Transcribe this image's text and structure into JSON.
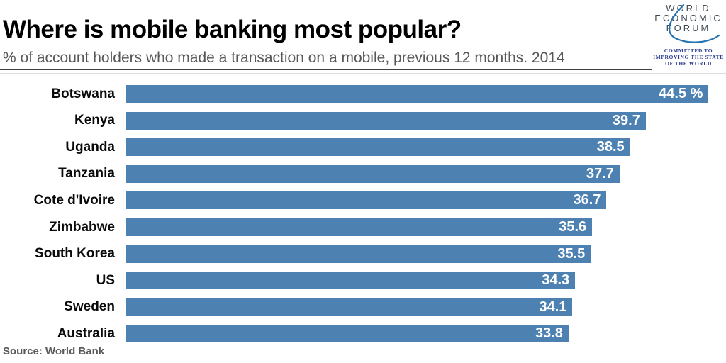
{
  "header": {
    "title": "Where is mobile banking most popular?",
    "subtitle": "% of account holders who made a transaction on a mobile, previous 12 months. 2014"
  },
  "logo": {
    "lines": [
      "WORLD",
      "ECONOMIC",
      "FORUM"
    ],
    "tagline_lines": [
      "COMMITTED TO",
      "IMPROVING THE STATE",
      "OF THE WORLD"
    ],
    "text_color": "#3d4852",
    "swoosh_color": "#2673b4",
    "tagline_color": "#2b3a8f"
  },
  "source": "Source: World Bank",
  "chart_data": {
    "type": "bar",
    "orientation": "horizontal",
    "title": "Where is mobile banking most popular?",
    "subtitle": "% of account holders who made a transaction on a mobile, previous 12 months. 2014",
    "categories": [
      "Botswana",
      "Kenya",
      "Uganda",
      "Tanzania",
      "Cote d'Ivoire",
      "Zimbabwe",
      "South Korea",
      "US",
      "Sweden",
      "Australia"
    ],
    "values": [
      44.5,
      39.7,
      38.5,
      37.7,
      36.7,
      35.6,
      35.5,
      34.3,
      34.1,
      33.8
    ],
    "value_labels": [
      "44.5 %",
      "39.7",
      "38.5",
      "37.7",
      "36.7",
      "35.6",
      "35.5",
      "34.3",
      "34.1",
      "33.8"
    ],
    "xlim": [
      0,
      45.83
    ],
    "grid": false,
    "legend": false,
    "bar_color": "#4c81b2",
    "value_label_color": "#ffffff",
    "source": "Source: World Bank"
  }
}
